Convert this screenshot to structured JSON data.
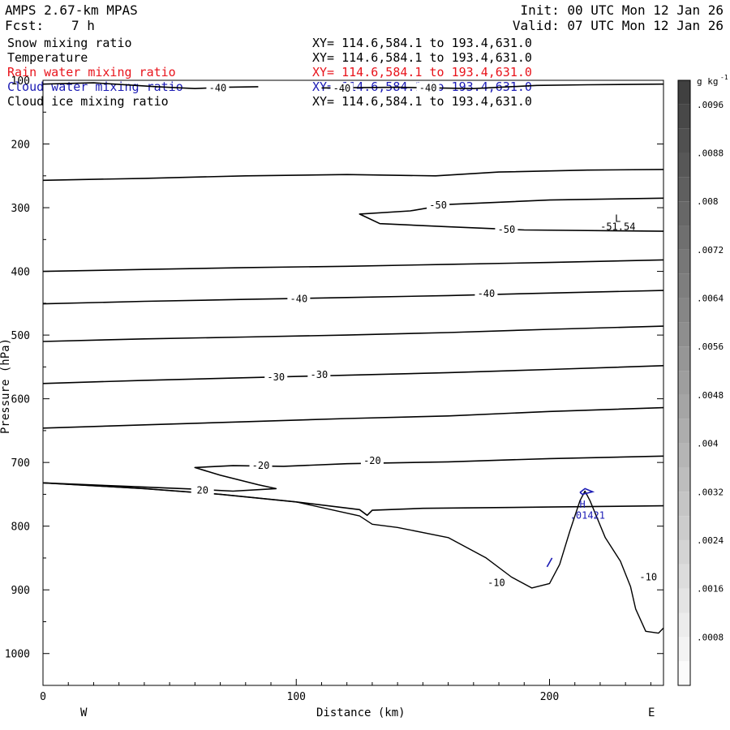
{
  "header": {
    "model": "AMPS 2.67-km MPAS",
    "fcst_label": "Fcst:",
    "fcst_value": "7 h",
    "init": "Init: 00 UTC Mon 12 Jan 26",
    "valid": "Valid: 07 UTC Mon 12 Jan 26"
  },
  "fields": [
    {
      "name": "Snow mixing ratio",
      "xy": "XY= 114.6,584.1 to 193.4,631.0",
      "color": "#000000"
    },
    {
      "name": "Temperature",
      "xy": "XY= 114.6,584.1 to 193.4,631.0",
      "color": "#000000"
    },
    {
      "name": "Rain water mixing ratio",
      "xy": "XY= 114.6,584.1 to 193.4,631.0",
      "color": "#e8141c"
    },
    {
      "name": "Cloud water mixing ratio",
      "xy": "XY= 114.6,584.1 to 193.4,631.0",
      "color": "#1a1ab4"
    },
    {
      "name": "Cloud ice mixing ratio",
      "xy": "XY= 114.6,584.1 to 193.4,631.0",
      "color": "#000000"
    }
  ],
  "chart_data": {
    "type": "contour",
    "xlabel": "Distance (km)",
    "ylabel": "Pressure (hPa)",
    "xlim": [
      0,
      245
    ],
    "ylim": [
      1050,
      100
    ],
    "x_ticks": [
      0,
      100,
      200
    ],
    "y_ticks": [
      200,
      300,
      400,
      500,
      600,
      700,
      800,
      900,
      1000
    ],
    "y_top_label": "100",
    "direction_left": "W",
    "direction_right": "E",
    "temperature_contours": [
      {
        "label": "-40",
        "points": [
          [
            0,
            106
          ],
          [
            20,
            104
          ],
          [
            45,
            110
          ],
          [
            60,
            113
          ],
          [
            72,
            111
          ],
          [
            85,
            110
          ]
        ]
      },
      {
        "label": "",
        "points": [
          [
            110,
            112
          ],
          [
            140,
            111
          ],
          [
            170,
            113
          ],
          [
            195,
            108
          ],
          [
            215,
            107
          ],
          [
            245,
            106
          ]
        ]
      },
      {
        "label": "",
        "points": [
          [
            0,
            257
          ],
          [
            40,
            254
          ],
          [
            80,
            250
          ],
          [
            120,
            248
          ],
          [
            155,
            250
          ],
          [
            180,
            244
          ],
          [
            215,
            241
          ],
          [
            245,
            240
          ]
        ]
      },
      {
        "label": "",
        "points": [
          [
            245,
            285
          ],
          [
            200,
            288
          ],
          [
            160,
            295
          ],
          [
            145,
            305
          ],
          [
            125,
            310
          ],
          [
            133,
            325
          ],
          [
            160,
            330
          ],
          [
            190,
            335
          ],
          [
            245,
            337
          ]
        ]
      },
      {
        "label": "",
        "points": [
          [
            0,
            400
          ],
          [
            40,
            397
          ],
          [
            80,
            394
          ],
          [
            120,
            392
          ],
          [
            160,
            389
          ],
          [
            200,
            386
          ],
          [
            245,
            382
          ]
        ]
      },
      {
        "label": "",
        "points": [
          [
            0,
            451
          ],
          [
            40,
            447
          ],
          [
            80,
            444
          ],
          [
            120,
            441
          ],
          [
            160,
            438
          ],
          [
            200,
            434
          ],
          [
            245,
            430
          ]
        ]
      },
      {
        "label": "",
        "points": [
          [
            0,
            510
          ],
          [
            40,
            506
          ],
          [
            80,
            503
          ],
          [
            120,
            500
          ],
          [
            160,
            496
          ],
          [
            200,
            491
          ],
          [
            245,
            486
          ]
        ]
      },
      {
        "label": "",
        "points": [
          [
            0,
            576
          ],
          [
            40,
            571
          ],
          [
            80,
            567
          ],
          [
            120,
            563
          ],
          [
            160,
            559
          ],
          [
            200,
            554
          ],
          [
            245,
            548
          ]
        ]
      },
      {
        "label": "",
        "points": [
          [
            0,
            646
          ],
          [
            40,
            641
          ],
          [
            80,
            636
          ],
          [
            120,
            631
          ],
          [
            160,
            627
          ],
          [
            200,
            620
          ],
          [
            245,
            614
          ]
        ]
      },
      {
        "label": "",
        "points": [
          [
            245,
            690
          ],
          [
            200,
            694
          ],
          [
            160,
            699
          ],
          [
            120,
            702
          ],
          [
            95,
            706
          ],
          [
            75,
            705
          ],
          [
            60,
            708
          ],
          [
            70,
            720
          ],
          [
            85,
            735
          ],
          [
            92,
            741
          ],
          [
            75,
            745
          ],
          [
            60,
            742
          ],
          [
            30,
            737
          ],
          [
            0,
            732
          ]
        ]
      },
      {
        "label": "",
        "points": [
          [
            245,
            768
          ],
          [
            200,
            770
          ],
          [
            150,
            772
          ],
          [
            130,
            775
          ],
          [
            128,
            783
          ],
          [
            125,
            774
          ],
          [
            100,
            762
          ],
          [
            70,
            750
          ],
          [
            40,
            741
          ],
          [
            0,
            732
          ]
        ]
      }
    ],
    "terrain": {
      "points": [
        [
          0,
          732
        ],
        [
          40,
          741
        ],
        [
          70,
          750
        ],
        [
          100,
          762
        ],
        [
          125,
          784
        ],
        [
          130,
          797
        ],
        [
          140,
          802
        ],
        [
          160,
          818
        ],
        [
          175,
          850
        ],
        [
          185,
          880
        ],
        [
          193,
          897
        ],
        [
          200,
          890
        ],
        [
          204,
          860
        ],
        [
          208,
          808
        ],
        [
          212,
          760
        ],
        [
          214,
          745
        ],
        [
          216,
          760
        ],
        [
          222,
          818
        ],
        [
          228,
          855
        ],
        [
          232,
          895
        ],
        [
          234,
          930
        ],
        [
          238,
          965
        ],
        [
          243,
          968
        ],
        [
          245,
          960
        ]
      ]
    },
    "contour_labels": [
      {
        "x": 69,
        "y": 112,
        "text": "-40",
        "color": "#000000"
      },
      {
        "x": 118,
        "y": 113,
        "text": "-40",
        "color": "#000000"
      },
      {
        "x": 152,
        "y": 112,
        "text": "-40",
        "color": "#000000"
      },
      {
        "x": 156,
        "y": 296,
        "text": "-50",
        "color": "#000000"
      },
      {
        "x": 183,
        "y": 334,
        "text": "-50",
        "color": "#000000"
      },
      {
        "x": 101,
        "y": 443,
        "text": "-40",
        "color": "#000000"
      },
      {
        "x": 175,
        "y": 435,
        "text": "-40",
        "color": "#000000"
      },
      {
        "x": 92,
        "y": 566,
        "text": "-30",
        "color": "#000000"
      },
      {
        "x": 109,
        "y": 562,
        "text": "-30",
        "color": "#000000"
      },
      {
        "x": 86,
        "y": 705,
        "text": "-20",
        "color": "#000000"
      },
      {
        "x": 130,
        "y": 697,
        "text": "-20",
        "color": "#000000"
      },
      {
        "x": 63,
        "y": 744,
        "text": "20",
        "color": "#000000"
      },
      {
        "x": 179,
        "y": 889,
        "text": "-10",
        "color": "#000000"
      },
      {
        "x": 239,
        "y": 880,
        "text": "-10",
        "color": "#000000"
      }
    ],
    "extrema": [
      {
        "x": 227,
        "y": 317,
        "text": "L",
        "color": "#000000"
      },
      {
        "x": 227,
        "y": 330,
        "text": "-51.54",
        "color": "#000000"
      },
      {
        "x": 213,
        "y": 766,
        "text": "H",
        "color": "#1a1ab4"
      },
      {
        "x": 215,
        "y": 783,
        "text": ".01421",
        "color": "#1a1ab4"
      }
    ],
    "cloud_water_contours": [
      {
        "points": [
          [
            212,
            747
          ],
          [
            214,
            741
          ],
          [
            217,
            746
          ],
          [
            213,
            750
          ],
          [
            212,
            747
          ]
        ]
      },
      {
        "points": [
          [
            199,
            864
          ],
          [
            201,
            850
          ]
        ]
      }
    ],
    "colorbar": {
      "unit_label": "g kg",
      "unit_exp": "-1",
      "levels": [
        0,
        0.0004,
        0.0008,
        0.0012,
        0.0016,
        0.002,
        0.0024,
        0.0028,
        0.0032,
        0.0036,
        0.004,
        0.0044,
        0.0048,
        0.0052,
        0.0056,
        0.006,
        0.0064,
        0.0068,
        0.0072,
        0.0076,
        0.008,
        0.0084,
        0.0088,
        0.0092,
        0.0096,
        0.01
      ],
      "tick_labels": [
        ".0008",
        ".0016",
        ".0024",
        ".0032",
        ".004",
        ".0048",
        ".0056",
        ".0064",
        ".0072",
        ".008",
        ".0088",
        ".0096"
      ],
      "tick_values": [
        0.0008,
        0.0016,
        0.0024,
        0.0032,
        0.004,
        0.0048,
        0.0056,
        0.0064,
        0.0072,
        0.008,
        0.0088,
        0.0096
      ],
      "color_low": "#ffffff",
      "color_high": "#3c3c3c"
    }
  }
}
